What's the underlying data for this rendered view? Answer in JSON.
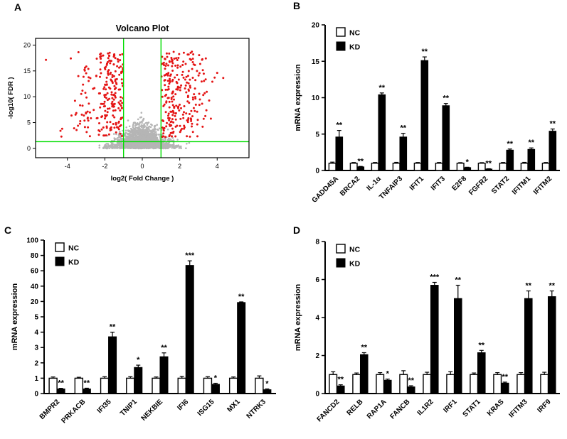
{
  "figure": {
    "panels": [
      {
        "label": "A"
      },
      {
        "label": "B"
      },
      {
        "label": "C"
      },
      {
        "label": "D"
      }
    ]
  },
  "chart_data": [
    {
      "id": "volcano",
      "panel": "A",
      "type": "scatter",
      "title": "Volcano Plot",
      "xlabel": "log2( Fold Change )",
      "ylabel": "-log10( FDR )",
      "xlim": [
        -5.7,
        5.7
      ],
      "ylim": [
        -1.8,
        21.3
      ],
      "xticks": [
        -4,
        -2,
        0,
        2,
        4
      ],
      "yticks": [
        0,
        5,
        10,
        15,
        20
      ],
      "threshold_x": [
        -1,
        1
      ],
      "threshold_y": 1.3,
      "threshold_color": "#00dd00",
      "colors": {
        "significant": "#e41515",
        "nonsignificant": "#b5b5b5"
      },
      "grid": false
    },
    {
      "id": "panel-b-bars",
      "panel": "B",
      "type": "bar",
      "ylabel": "mRNA expression",
      "ylim": [
        0,
        20
      ],
      "yticks": [
        0,
        5,
        10,
        15,
        20
      ],
      "legend_position": "top-left",
      "grid": false,
      "categories": [
        "GADD45A",
        "BRCA2",
        "IL-1α",
        "TNFAIP3",
        "IFIT1",
        "IFIT3",
        "E2F8",
        "FGFR2",
        "STAT2",
        "IFITM1",
        "IFITM2"
      ],
      "series": [
        {
          "name": "NC",
          "fill": "#ffffff",
          "values": [
            1,
            1,
            1,
            1,
            1,
            1,
            1,
            1,
            1,
            1,
            1
          ],
          "errors": [
            0.15,
            0.1,
            0.1,
            0.12,
            0.1,
            0.1,
            0.08,
            0.08,
            0.1,
            0.12,
            0.1
          ]
        },
        {
          "name": "KD",
          "fill": "#000000",
          "values": [
            4.6,
            0.5,
            10.4,
            4.6,
            15.1,
            8.9,
            0.4,
            0.2,
            2.8,
            2.9,
            5.4
          ],
          "errors": [
            0.9,
            0.06,
            0.25,
            0.5,
            0.5,
            0.3,
            0.05,
            0.04,
            0.15,
            0.2,
            0.3
          ]
        }
      ],
      "significance": [
        "**",
        "**",
        "**",
        "**",
        "**",
        "**",
        "*",
        "**",
        "**",
        "**",
        "**"
      ]
    },
    {
      "id": "panel-c-bars",
      "panel": "C",
      "type": "bar",
      "ylabel": "mRNA expression",
      "ylim": [
        0,
        100
      ],
      "yticks": [
        0,
        1,
        2,
        3,
        4,
        5,
        20,
        40,
        60,
        80,
        100
      ],
      "axis_note": "segmented scale 0-5 then 20-100",
      "legend_position": "top-left",
      "grid": false,
      "categories": [
        "BMPR2",
        "PRKACB",
        "IFI35",
        "TNIP1",
        "NEKBIE",
        "IFI6",
        "ISG15",
        "MX1",
        "NTRK3"
      ],
      "series": [
        {
          "name": "NC",
          "fill": "#ffffff",
          "values": [
            1,
            1,
            1,
            1,
            1,
            1,
            1,
            1,
            1
          ],
          "errors": [
            0.08,
            0.06,
            0.1,
            0.1,
            0.08,
            0.12,
            0.1,
            0.08,
            0.15
          ]
        },
        {
          "name": "KD",
          "fill": "#000000",
          "values": [
            0.3,
            0.3,
            3.7,
            1.7,
            2.4,
            67,
            0.6,
            19,
            0.25
          ],
          "errors": [
            0.04,
            0.05,
            0.3,
            0.15,
            0.25,
            6,
            0.07,
            0.6,
            0.05
          ]
        }
      ],
      "significance": [
        "**",
        "**",
        "**",
        "*",
        "**",
        "***",
        "*",
        "**",
        "*"
      ]
    },
    {
      "id": "panel-d-bars",
      "panel": "D",
      "type": "bar",
      "ylabel": "mRNA expression",
      "ylim": [
        0,
        8
      ],
      "yticks": [
        0,
        2,
        4,
        6,
        8
      ],
      "legend_position": "top-left",
      "grid": false,
      "categories": [
        "FANCD2",
        "RELB",
        "RAP1A",
        "FANCB",
        "IL1R2",
        "IRF1",
        "STAT1",
        "KRAS",
        "IFITM3",
        "IRF9"
      ],
      "series": [
        {
          "name": "NC",
          "fill": "#ffffff",
          "values": [
            1,
            1,
            1,
            1,
            1,
            1,
            1,
            1,
            1,
            1
          ],
          "errors": [
            0.15,
            0.08,
            0.1,
            0.2,
            0.12,
            0.15,
            0.08,
            0.1,
            0.1,
            0.12
          ]
        },
        {
          "name": "KD",
          "fill": "#000000",
          "values": [
            0.4,
            2.05,
            0.7,
            0.35,
            5.7,
            5.0,
            2.15,
            0.55,
            5.0,
            5.1
          ],
          "errors": [
            0.06,
            0.1,
            0.06,
            0.06,
            0.15,
            0.7,
            0.12,
            0.05,
            0.4,
            0.3
          ]
        }
      ],
      "significance": [
        "**",
        "**",
        "*",
        "**",
        "***",
        "**",
        "**",
        "**",
        "**",
        "**"
      ]
    }
  ]
}
